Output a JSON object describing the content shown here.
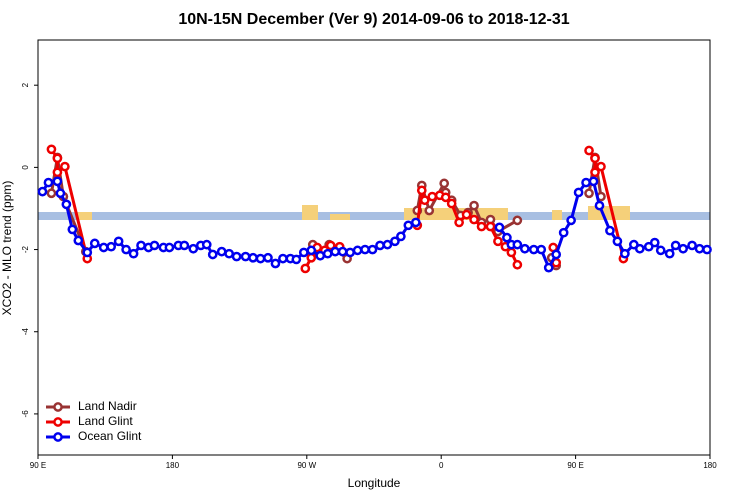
{
  "chart_data": {
    "type": "line",
    "title": "10N-15N December (Ver 9)   2014-09-06 to 2018-12-31",
    "x_label": "Longitude",
    "y_label": "XCO2 - MLO trend (ppm)",
    "xlim": [
      90,
      540
    ],
    "ylim": [
      -7.0,
      3.1
    ],
    "xticks": [
      {
        "value": 90,
        "label": "90 E"
      },
      180,
      {
        "value": 270,
        "label": "90 W"
      },
      {
        "value": 360,
        "label": "0"
      },
      {
        "value": 450,
        "label": "90 E"
      },
      {
        "value": 540,
        "label": "180"
      }
    ],
    "yticks": [
      -6,
      -4,
      -2,
      0,
      2
    ],
    "legend": "bottom-left",
    "series": [
      {
        "name": "Land Nadir",
        "color": "#993333",
        "x": [
          99,
          103,
          107,
          122,
          null,
          274,
          277,
          285,
          290,
          297,
          null,
          344,
          347,
          352,
          362,
          363,
          367,
          373,
          378,
          382,
          387,
          393,
          398,
          411,
          null,
          434,
          437,
          null,
          459,
          463,
          467
        ],
        "values": [
          -0.63,
          0.24,
          -0.71,
          -2.05,
          null,
          -1.88,
          -2.05,
          -1.88,
          -2.02,
          -2.22,
          null,
          -1.05,
          -0.44,
          -1.05,
          -0.39,
          -0.61,
          -0.8,
          -1.17,
          -1.1,
          -0.93,
          -1.34,
          -1.27,
          -1.56,
          -1.29,
          null,
          -2.2,
          -2.39,
          null,
          -0.63,
          0.24,
          -0.71
        ]
      },
      {
        "name": "Land Glint",
        "color": "#ee0000",
        "x": [
          99,
          103,
          103,
          108,
          123,
          null,
          269,
          273,
          277,
          282,
          286,
          292,
          null,
          344,
          347,
          349,
          354,
          359,
          363,
          367,
          372,
          377,
          382,
          387,
          393,
          398,
          403,
          407,
          411,
          null,
          435,
          437,
          null,
          459,
          463,
          463,
          467,
          482
        ],
        "values": [
          0.44,
          0.22,
          -0.12,
          0.02,
          -2.22,
          null,
          -2.46,
          -2.2,
          -1.95,
          -2.02,
          -1.9,
          -1.93,
          null,
          -1.41,
          -0.56,
          -0.8,
          -0.71,
          -0.68,
          -0.73,
          -0.88,
          -1.34,
          -1.15,
          -1.27,
          -1.44,
          -1.44,
          -1.8,
          -1.93,
          -2.07,
          -2.37,
          null,
          -1.95,
          -2.32,
          null,
          0.41,
          0.22,
          -0.12,
          0.02,
          -2.22
        ]
      },
      {
        "name": "Ocean Glint",
        "color": "#0000ee",
        "x": [
          93,
          97,
          103,
          105,
          109,
          113,
          117,
          123,
          128,
          134,
          139,
          144,
          149,
          154,
          159,
          164,
          168,
          174,
          178,
          184,
          188,
          194,
          199,
          203,
          207,
          213,
          218,
          223,
          229,
          234,
          239,
          244,
          249,
          254,
          259,
          263,
          268,
          273,
          279,
          284,
          289,
          294,
          299,
          304,
          309,
          314,
          319,
          324,
          329,
          333,
          338,
          343,
          null,
          399,
          404,
          407,
          411,
          416,
          422,
          427,
          432,
          437,
          442,
          447,
          452,
          457,
          462,
          466,
          473,
          478,
          483,
          489,
          493,
          499,
          503,
          507,
          513,
          517,
          522,
          528,
          533,
          538
        ],
        "values": [
          -0.59,
          -0.37,
          -0.34,
          -0.63,
          -0.9,
          -1.51,
          -1.78,
          -2.07,
          -1.85,
          -1.95,
          -1.93,
          -1.8,
          -2.0,
          -2.1,
          -1.9,
          -1.95,
          -1.9,
          -1.95,
          -1.95,
          -1.9,
          -1.9,
          -1.98,
          -1.9,
          -1.88,
          -2.12,
          -2.05,
          -2.1,
          -2.17,
          -2.17,
          -2.2,
          -2.22,
          -2.2,
          -2.34,
          -2.22,
          -2.22,
          -2.24,
          -2.07,
          -2.02,
          -2.15,
          -2.1,
          -2.05,
          -2.05,
          -2.07,
          -2.02,
          -2.0,
          -2.0,
          -1.9,
          -1.88,
          -1.8,
          -1.68,
          -1.41,
          -1.34,
          null,
          -1.46,
          -1.71,
          -1.88,
          -1.88,
          -1.98,
          -2.0,
          -2.0,
          -2.44,
          -2.12,
          -1.59,
          -1.29,
          -0.61,
          -0.37,
          -0.34,
          -0.93,
          -1.54,
          -1.8,
          -2.1,
          -1.88,
          -1.98,
          -1.93,
          -1.83,
          -2.02,
          -2.1,
          -1.9,
          -1.98,
          -1.9,
          -1.98,
          -2.0
        ]
      }
    ]
  }
}
